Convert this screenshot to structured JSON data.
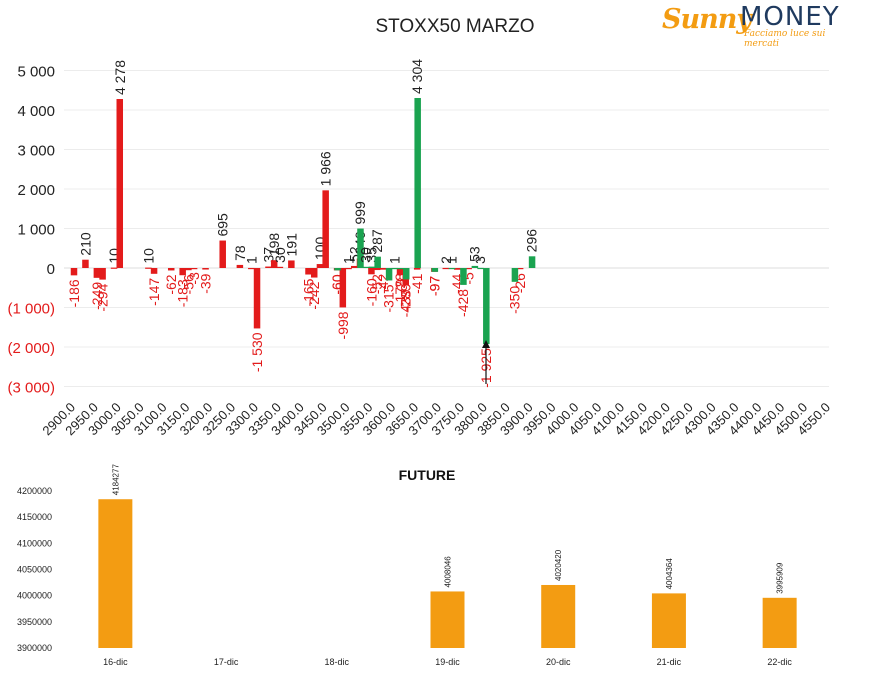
{
  "chart_data": [
    {
      "type": "bar",
      "title": "STOXX50 MARZO",
      "yticks": [
        "5 000",
        "4 000",
        "3 000",
        "2 000",
        "1 000",
        "0",
        "(1 000)",
        "(2 000)",
        "(3 000)"
      ],
      "ylim": [
        -3000,
        5000
      ],
      "categories": [
        "2900.0",
        "2950.0",
        "3000.0",
        "3050.0",
        "3100.0",
        "3150.0",
        "3200.0",
        "3250.0",
        "3300.0",
        "3350.0",
        "3400.0",
        "3450.0",
        "3500.0",
        "3550.0",
        "3600.0",
        "3650.0",
        "3700.0",
        "3750.0",
        "3800.0",
        "3850.0",
        "3900.0",
        "3950.0",
        "4000.0",
        "4050.0",
        "4100.0",
        "4150.0",
        "4200.0",
        "4250.0",
        "4300.0",
        "4350.0",
        "4400.0",
        "4450.0",
        "4500.0",
        "4550.0"
      ],
      "series": [
        {
          "color": "#e31b1b",
          "points": [
            {
              "x": 2900,
              "y": -186,
              "label": "-186"
            },
            {
              "x": 2925,
              "y": 210,
              "label": "210"
            },
            {
              "x": 2950,
              "y": -249,
              "label": "-249"
            },
            {
              "x": 2962.5,
              "y": -294,
              "label": "-294"
            },
            {
              "x": 2987.5,
              "y": 10,
              "label": "10"
            },
            {
              "x": 3000,
              "y": 4278,
              "label": "4 278"
            },
            {
              "x": 3062.5,
              "y": 10,
              "label": "10"
            },
            {
              "x": 3075,
              "y": -147,
              "label": "-147"
            },
            {
              "x": 3112.5,
              "y": -62,
              "label": "-62"
            },
            {
              "x": 3137.5,
              "y": -183,
              "label": "-183"
            },
            {
              "x": 3150,
              "y": -56,
              "label": "-56"
            },
            {
              "x": 3162.5,
              "y": -3,
              "label": "-3"
            },
            {
              "x": 3187.5,
              "y": -39,
              "label": "-39"
            },
            {
              "x": 3225,
              "y": 695,
              "label": "695"
            },
            {
              "x": 3262.5,
              "y": 78,
              "label": "78"
            },
            {
              "x": 3287.5,
              "y": 1,
              "label": "1"
            },
            {
              "x": 3300,
              "y": -1530,
              "label": "-1 530"
            },
            {
              "x": 3325,
              "y": 37,
              "label": "37"
            },
            {
              "x": 3337.5,
              "y": 198,
              "label": "198"
            },
            {
              "x": 3350,
              "y": 30,
              "label": "30"
            },
            {
              "x": 3375,
              "y": 191,
              "label": "191"
            },
            {
              "x": 3412.5,
              "y": -165,
              "label": "-165"
            },
            {
              "x": 3425,
              "y": -242,
              "label": "-242"
            },
            {
              "x": 3437.5,
              "y": 100,
              "label": "100"
            },
            {
              "x": 3450,
              "y": 1966,
              "label": "1 966"
            },
            {
              "x": 3475,
              "y": -60,
              "label": "-60"
            },
            {
              "x": 3487.5,
              "y": -998,
              "label": "-998"
            },
            {
              "x": 3500,
              "y": 1,
              "label": "1"
            },
            {
              "x": 3512.5,
              "y": 52,
              "label": "52"
            },
            {
              "x": 3525,
              "y": 240,
              "label": "240"
            },
            {
              "x": 3550,
              "y": -160,
              "label": "-160"
            },
            {
              "x": 3562.5,
              "y": -52,
              "label": "-52"
            },
            {
              "x": 3575,
              "y": -42,
              "label": "-42"
            },
            {
              "x": 3612.5,
              "y": -179,
              "label": "-179"
            },
            {
              "x": 3625,
              "y": -439,
              "label": "-439"
            },
            {
              "x": 3650,
              "y": -41,
              "label": "-41"
            },
            {
              "x": 3687.5,
              "y": -97,
              "label": "-97"
            },
            {
              "x": 3712.5,
              "y": 2,
              "label": "2"
            },
            {
              "x": 3737.5,
              "y": -44,
              "label": "-44"
            },
            {
              "x": 3762.5,
              "y": -5,
              "label": "-5"
            },
            {
              "x": 3875,
              "y": -26,
              "label": "-26"
            }
          ]
        },
        {
          "color": "#1aa350",
          "points": [
            {
              "x": 3475,
              "y": -60,
              "label": "-60"
            },
            {
              "x": 3525,
              "y": 999,
              "label": "999"
            },
            {
              "x": 3537.5,
              "y": 30,
              "label": "30"
            },
            {
              "x": 3550,
              "y": 35,
              "label": "35"
            },
            {
              "x": 3562.5,
              "y": 287,
              "label": "287"
            },
            {
              "x": 3587.5,
              "y": -315,
              "label": "-315"
            },
            {
              "x": 3600,
              "y": 1,
              "label": "1"
            },
            {
              "x": 3612.5,
              "y": -28,
              "label": "-28"
            },
            {
              "x": 3625,
              "y": -289,
              "label": "-289"
            },
            {
              "x": 3650,
              "y": 4304,
              "label": "4 304"
            },
            {
              "x": 3687.5,
              "y": -97,
              "label": "-97"
            },
            {
              "x": 3725,
              "y": 1,
              "label": "1"
            },
            {
              "x": 3750,
              "y": -428,
              "label": "-428"
            },
            {
              "x": 3775,
              "y": 53,
              "label": "53"
            },
            {
              "x": 3787.5,
              "y": 3,
              "label": "3"
            },
            {
              "x": 3800,
              "y": -1925,
              "label": "-1 925"
            },
            {
              "x": 3862.5,
              "y": -350,
              "label": "-350"
            },
            {
              "x": 3900,
              "y": 296,
              "label": "296"
            }
          ]
        }
      ],
      "annotation": "arrow near 3800.0 pointing up"
    },
    {
      "type": "bar",
      "title": "FUTURE",
      "categories": [
        "16-dic",
        "17-dic",
        "18-dic",
        "19-dic",
        "20-dic",
        "21-dic",
        "22-dic"
      ],
      "values": [
        4184277,
        null,
        null,
        4008046,
        4020420,
        4004364,
        3995909
      ],
      "data_labels": [
        "4184277",
        "",
        "",
        "4008046",
        "4020420",
        "4004364",
        "3995909"
      ],
      "yticks": [
        "4200000",
        "4150000",
        "4100000",
        "4050000",
        "4000000",
        "3950000",
        "3900000"
      ],
      "ylim": [
        3900000,
        4200000
      ],
      "color": "#f39c12"
    }
  ],
  "logo": {
    "part1": "Sunny",
    "part2": "MONEY",
    "tagline": "Facciamo luce sui mercati"
  }
}
